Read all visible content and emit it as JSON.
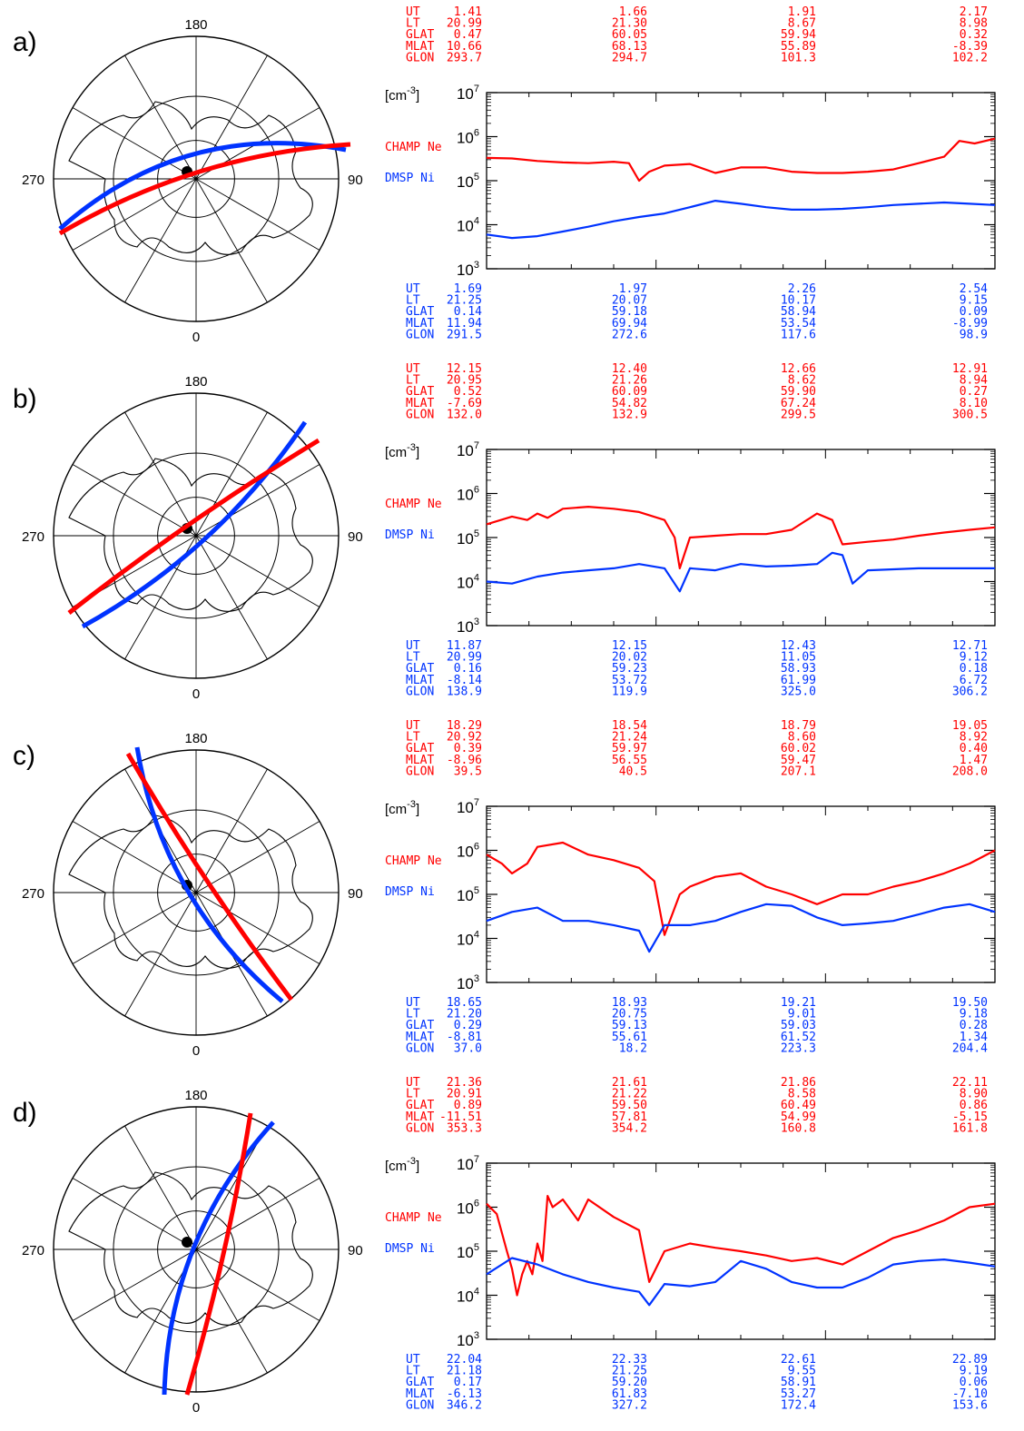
{
  "colors": {
    "champ": "#ff0000",
    "dmsp": "#0033ff",
    "axis": "#000000"
  },
  "units_label": "cm",
  "units_exponent": "-3",
  "polar_labels": {
    "top": "180",
    "left": "270",
    "right": "90",
    "bottom": "0"
  },
  "row_labels": [
    "UT",
    "LT",
    "GLAT",
    "MLAT",
    "GLON"
  ],
  "series_labels": {
    "champ": "CHAMP  Ne",
    "dmsp": "DMSP  Ni"
  },
  "chart_data": [
    {
      "panel": "a)",
      "type": "line",
      "y_scale": "log",
      "ylim": [
        1000,
        10000000
      ],
      "y_ticks": [
        "10^3",
        "10^4",
        "10^5",
        "10^6",
        "10^7"
      ],
      "top_table": [
        [
          "1.41",
          "1.66",
          "1.91",
          "2.17"
        ],
        [
          "20.99",
          "21.30",
          "8.67",
          "8.98"
        ],
        [
          "0.47",
          "60.05",
          "59.94",
          "0.32"
        ],
        [
          "10.66",
          "68.13",
          "55.89",
          "-8.39"
        ],
        [
          "293.7",
          "294.7",
          "101.3",
          "102.2"
        ]
      ],
      "bottom_table": [
        [
          "1.69",
          "1.97",
          "2.26",
          "2.54"
        ],
        [
          "21.25",
          "20.07",
          "10.17",
          "9.15"
        ],
        [
          "0.14",
          "59.18",
          "58.94",
          "0.09"
        ],
        [
          "11.94",
          "69.94",
          "53.54",
          "-8.99"
        ],
        [
          "291.5",
          "272.6",
          "117.6",
          "98.9"
        ]
      ],
      "series": [
        {
          "name": "CHAMP  Ne",
          "x": [
            0,
            0.05,
            0.1,
            0.15,
            0.2,
            0.25,
            0.28,
            0.3,
            0.32,
            0.35,
            0.4,
            0.45,
            0.5,
            0.55,
            0.6,
            0.65,
            0.7,
            0.75,
            0.8,
            0.85,
            0.9,
            0.93,
            0.96,
            1.0
          ],
          "y": [
            330000.0,
            320000.0,
            280000.0,
            260000.0,
            250000.0,
            270000.0,
            250000.0,
            100000.0,
            160000.0,
            220000.0,
            240000.0,
            150000.0,
            200000.0,
            200000.0,
            160000.0,
            150000.0,
            150000.0,
            160000.0,
            180000.0,
            250000.0,
            350000.0,
            800000.0,
            700000.0,
            900000.0
          ]
        },
        {
          "name": "DMSP  Ni",
          "x": [
            0,
            0.05,
            0.1,
            0.15,
            0.2,
            0.25,
            0.3,
            0.35,
            0.4,
            0.45,
            0.5,
            0.55,
            0.6,
            0.65,
            0.7,
            0.75,
            0.8,
            0.85,
            0.9,
            0.95,
            1.0
          ],
          "y": [
            6000.0,
            5000.0,
            5500.0,
            7000.0,
            9000.0,
            12000.0,
            15000.0,
            18000.0,
            25000.0,
            35000.0,
            30000.0,
            25000.0,
            22000.0,
            22000.0,
            23000.0,
            25000.0,
            28000.0,
            30000.0,
            32000.0,
            30000.0,
            28000.0
          ]
        }
      ]
    },
    {
      "panel": "b)",
      "type": "line",
      "y_scale": "log",
      "ylim": [
        1000,
        10000000
      ],
      "y_ticks": [
        "10^3",
        "10^4",
        "10^5",
        "10^6",
        "10^7"
      ],
      "top_table": [
        [
          "12.15",
          "12.40",
          "12.66",
          "12.91"
        ],
        [
          "20.95",
          "21.26",
          "8.62",
          "8.94"
        ],
        [
          "0.52",
          "60.09",
          "59.90",
          "0.27"
        ],
        [
          "-7.69",
          "54.82",
          "67.24",
          "8.10"
        ],
        [
          "132.0",
          "132.9",
          "299.5",
          "300.5"
        ]
      ],
      "bottom_table": [
        [
          "11.87",
          "12.15",
          "12.43",
          "12.71"
        ],
        [
          "20.99",
          "20.02",
          "11.05",
          "9.12"
        ],
        [
          "0.16",
          "59.23",
          "58.93",
          "0.18"
        ],
        [
          "-8.14",
          "53.72",
          "61.99",
          "6.72"
        ],
        [
          "138.9",
          "119.9",
          "325.0",
          "306.2"
        ]
      ],
      "series": [
        {
          "name": "CHAMP  Ne",
          "x": [
            0,
            0.05,
            0.08,
            0.1,
            0.12,
            0.15,
            0.2,
            0.25,
            0.3,
            0.35,
            0.37,
            0.38,
            0.4,
            0.45,
            0.5,
            0.55,
            0.6,
            0.65,
            0.68,
            0.7,
            0.75,
            0.8,
            0.85,
            0.9,
            0.95,
            1.0
          ],
          "y": [
            200000.0,
            300000.0,
            250000.0,
            350000.0,
            280000.0,
            450000.0,
            500000.0,
            450000.0,
            380000.0,
            250000.0,
            100000.0,
            20000.0,
            100000.0,
            110000.0,
            120000.0,
            120000.0,
            150000.0,
            350000.0,
            250000.0,
            70000.0,
            80000.0,
            90000.0,
            110000.0,
            130000.0,
            150000.0,
            170000.0
          ]
        },
        {
          "name": "DMSP  Ni",
          "x": [
            0,
            0.05,
            0.1,
            0.15,
            0.2,
            0.25,
            0.3,
            0.35,
            0.38,
            0.4,
            0.45,
            0.5,
            0.55,
            0.6,
            0.65,
            0.68,
            0.7,
            0.72,
            0.75,
            0.8,
            0.85,
            0.9,
            0.95,
            1.0
          ],
          "y": [
            10000.0,
            9000.0,
            13000.0,
            16000.0,
            18000.0,
            20000.0,
            25000.0,
            20000.0,
            6000.0,
            20000.0,
            18000.0,
            25000.0,
            22000.0,
            23000.0,
            25000.0,
            45000.0,
            40000.0,
            9000.0,
            18000.0,
            19000.0,
            20000.0,
            20000.0,
            20000.0,
            20000.0
          ]
        }
      ]
    },
    {
      "panel": "c)",
      "type": "line",
      "y_scale": "log",
      "ylim": [
        1000,
        10000000
      ],
      "y_ticks": [
        "10^3",
        "10^4",
        "10^5",
        "10^6",
        "10^7"
      ],
      "top_table": [
        [
          "18.29",
          "18.54",
          "18.79",
          "19.05"
        ],
        [
          "20.92",
          "21.24",
          "8.60",
          "8.92"
        ],
        [
          "0.39",
          "59.97",
          "60.02",
          "0.40"
        ],
        [
          "-8.96",
          "56.55",
          "59.47",
          "1.47"
        ],
        [
          "39.5",
          "40.5",
          "207.1",
          "208.0"
        ]
      ],
      "bottom_table": [
        [
          "18.65",
          "18.93",
          "19.21",
          "19.50"
        ],
        [
          "21.20",
          "20.75",
          "9.01",
          "9.18"
        ],
        [
          "0.29",
          "59.13",
          "59.03",
          "0.28"
        ],
        [
          "-8.81",
          "55.61",
          "61.52",
          "1.34"
        ],
        [
          "37.0",
          "18.2",
          "223.3",
          "204.4"
        ]
      ],
      "series": [
        {
          "name": "CHAMP  Ne",
          "x": [
            0,
            0.03,
            0.05,
            0.08,
            0.1,
            0.15,
            0.2,
            0.25,
            0.3,
            0.33,
            0.35,
            0.38,
            0.4,
            0.45,
            0.5,
            0.55,
            0.6,
            0.65,
            0.7,
            0.75,
            0.8,
            0.85,
            0.9,
            0.95,
            1.0
          ],
          "y": [
            800000.0,
            500000.0,
            300000.0,
            500000.0,
            1200000.0,
            1500000.0,
            800000.0,
            600000.0,
            400000.0,
            200000.0,
            12000.0,
            100000.0,
            150000.0,
            250000.0,
            300000.0,
            150000.0,
            100000.0,
            60000.0,
            100000.0,
            100000.0,
            150000.0,
            200000.0,
            300000.0,
            500000.0,
            1000000.0
          ]
        },
        {
          "name": "DMSP  Ni",
          "x": [
            0,
            0.05,
            0.1,
            0.15,
            0.2,
            0.25,
            0.3,
            0.32,
            0.35,
            0.4,
            0.45,
            0.5,
            0.55,
            0.6,
            0.65,
            0.7,
            0.75,
            0.8,
            0.85,
            0.9,
            0.95,
            1.0
          ],
          "y": [
            25000.0,
            40000.0,
            50000.0,
            25000.0,
            25000.0,
            20000.0,
            15000.0,
            5000.0,
            20000.0,
            20000.0,
            25000.0,
            40000.0,
            60000.0,
            55000.0,
            30000.0,
            20000.0,
            22000.0,
            25000.0,
            35000.0,
            50000.0,
            60000.0,
            40000.0
          ]
        }
      ]
    },
    {
      "panel": "d)",
      "type": "line",
      "y_scale": "log",
      "ylim": [
        1000,
        10000000
      ],
      "y_ticks": [
        "10^3",
        "10^4",
        "10^5",
        "10^6",
        "10^7"
      ],
      "top_table": [
        [
          "21.36",
          "21.61",
          "21.86",
          "22.11"
        ],
        [
          "20.91",
          "21.22",
          "8.58",
          "8.90"
        ],
        [
          "0.89",
          "59.50",
          "60.49",
          "0.86"
        ],
        [
          "-11.51",
          "57.81",
          "54.99",
          "-5.15"
        ],
        [
          "353.3",
          "354.2",
          "160.8",
          "161.8"
        ]
      ],
      "bottom_table": [
        [
          "22.04",
          "22.33",
          "22.61",
          "22.89"
        ],
        [
          "21.18",
          "21.25",
          "9.55",
          "9.19"
        ],
        [
          "0.17",
          "59.20",
          "58.91",
          "0.06"
        ],
        [
          "-6.13",
          "61.83",
          "53.27",
          "-7.10"
        ],
        [
          "346.2",
          "327.2",
          "172.4",
          "153.6"
        ]
      ],
      "series": [
        {
          "name": "CHAMP  Ne",
          "x": [
            0,
            0.02,
            0.04,
            0.05,
            0.06,
            0.07,
            0.08,
            0.09,
            0.1,
            0.11,
            0.12,
            0.13,
            0.15,
            0.18,
            0.2,
            0.25,
            0.3,
            0.32,
            0.35,
            0.4,
            0.45,
            0.5,
            0.55,
            0.6,
            0.65,
            0.7,
            0.75,
            0.8,
            0.85,
            0.9,
            0.95,
            1.0
          ],
          "y": [
            1200000.0,
            700000.0,
            100000.0,
            40000.0,
            10000.0,
            30000.0,
            60000.0,
            30000.0,
            150000.0,
            60000.0,
            1800000.0,
            1000000.0,
            1500000.0,
            500000.0,
            1500000.0,
            600000.0,
            300000.0,
            20000.0,
            100000.0,
            150000.0,
            120000.0,
            100000.0,
            80000.0,
            60000.0,
            70000.0,
            50000.0,
            100000.0,
            200000.0,
            300000.0,
            500000.0,
            1000000.0,
            1200000.0
          ]
        },
        {
          "name": "DMSP  Ni",
          "x": [
            0,
            0.05,
            0.1,
            0.15,
            0.2,
            0.25,
            0.3,
            0.32,
            0.35,
            0.4,
            0.45,
            0.5,
            0.55,
            0.6,
            0.65,
            0.7,
            0.75,
            0.8,
            0.85,
            0.9,
            0.95,
            1.0
          ],
          "y": [
            30000.0,
            70000.0,
            50000.0,
            30000.0,
            20000.0,
            15000.0,
            12000.0,
            6000.0,
            18000.0,
            16000.0,
            20000.0,
            60000.0,
            40000.0,
            20000.0,
            15000.0,
            15000.0,
            25000.0,
            50000.0,
            60000.0,
            65000.0,
            55000.0,
            45000.0
          ]
        }
      ]
    }
  ]
}
